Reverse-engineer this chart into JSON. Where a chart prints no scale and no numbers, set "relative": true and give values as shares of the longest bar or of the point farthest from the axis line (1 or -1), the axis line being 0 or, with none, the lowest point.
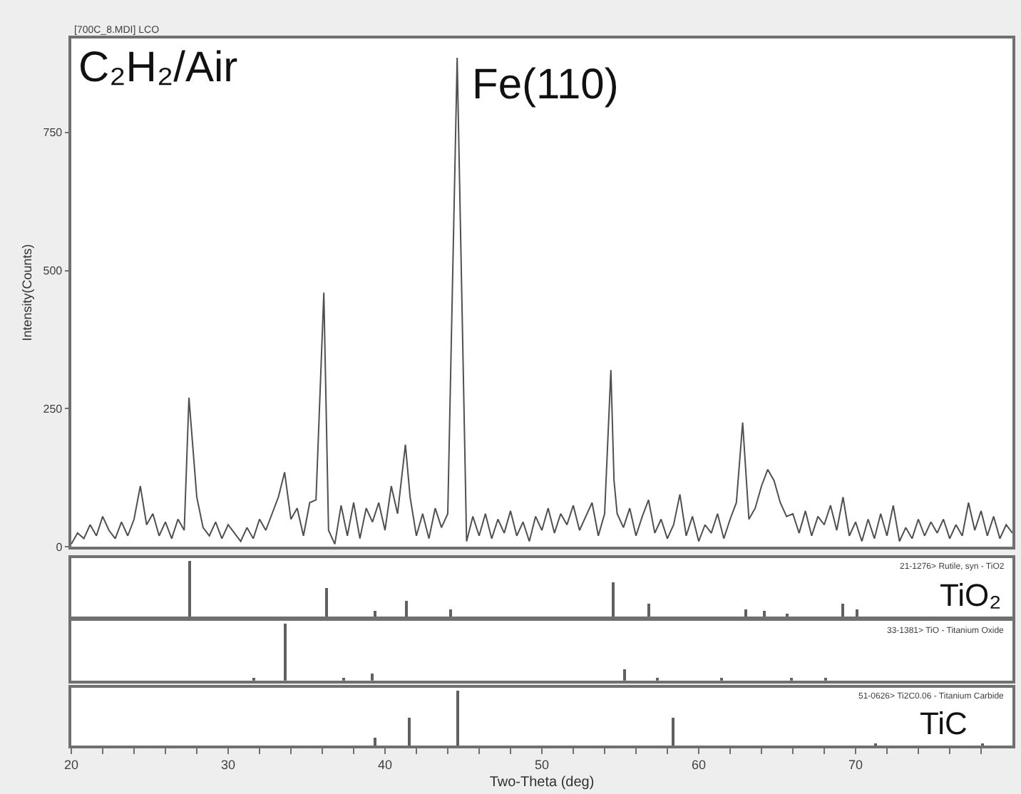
{
  "chart_data": [
    {
      "type": "line",
      "ylabel": "Intensity(Counts)",
      "xlim": [
        20,
        80
      ],
      "ylim": [
        0,
        920
      ],
      "yticks": [
        0,
        250,
        500,
        750
      ],
      "tick_labels": "y",
      "marker": "none",
      "line_style": "solid",
      "color": "#505050",
      "annotations": [
        "[700C_8.MDI] LCO",
        "C₂H₂/Air",
        {
          "text": "Fe(110)",
          "x": 44.6,
          "y": 885
        }
      ],
      "x": [
        20.0,
        20.4,
        20.8,
        21.2,
        21.6,
        22.0,
        22.4,
        22.8,
        23.2,
        23.6,
        24.0,
        24.4,
        24.8,
        25.2,
        25.6,
        26.0,
        26.4,
        26.8,
        27.2,
        27.5,
        28.0,
        28.4,
        28.8,
        29.2,
        29.6,
        30.0,
        30.4,
        30.8,
        31.2,
        31.6,
        32.0,
        32.4,
        32.8,
        33.2,
        33.6,
        34.0,
        34.4,
        34.8,
        35.2,
        35.6,
        36.1,
        36.4,
        36.8,
        37.2,
        37.6,
        38.0,
        38.4,
        38.8,
        39.2,
        39.6,
        40.0,
        40.4,
        40.8,
        41.3,
        41.6,
        42.0,
        42.4,
        42.8,
        43.2,
        43.6,
        44.0,
        44.6,
        45.2,
        45.6,
        46.0,
        46.4,
        46.8,
        47.2,
        47.6,
        48.0,
        48.4,
        48.8,
        49.2,
        49.6,
        50.0,
        50.4,
        50.8,
        51.2,
        51.6,
        52.0,
        52.4,
        52.8,
        53.2,
        53.6,
        54.0,
        54.4,
        54.6,
        54.8,
        55.2,
        55.6,
        56.0,
        56.4,
        56.8,
        57.2,
        57.6,
        58.0,
        58.4,
        58.8,
        59.2,
        59.6,
        60.0,
        60.4,
        60.8,
        61.2,
        61.6,
        62.0,
        62.4,
        62.8,
        63.2,
        63.6,
        64.0,
        64.4,
        64.8,
        65.2,
        65.6,
        66.0,
        66.4,
        66.8,
        67.2,
        67.6,
        68.0,
        68.4,
        68.8,
        69.2,
        69.6,
        70.0,
        70.4,
        70.8,
        71.2,
        71.6,
        72.0,
        72.4,
        72.8,
        73.2,
        73.6,
        74.0,
        74.4,
        74.8,
        75.2,
        75.6,
        76.0,
        76.4,
        76.8,
        77.2,
        77.6,
        78.0,
        78.4,
        78.8,
        79.2,
        79.6,
        80.0
      ],
      "values": [
        5,
        25,
        15,
        40,
        20,
        55,
        30,
        15,
        45,
        20,
        50,
        110,
        40,
        60,
        20,
        45,
        15,
        50,
        30,
        270,
        90,
        35,
        20,
        45,
        15,
        40,
        25,
        10,
        35,
        15,
        50,
        30,
        60,
        90,
        135,
        50,
        70,
        20,
        80,
        85,
        460,
        30,
        5,
        75,
        20,
        80,
        15,
        70,
        45,
        80,
        30,
        110,
        60,
        185,
        90,
        20,
        60,
        15,
        70,
        35,
        60,
        885,
        10,
        55,
        20,
        60,
        15,
        50,
        25,
        65,
        20,
        45,
        10,
        55,
        30,
        70,
        25,
        60,
        40,
        75,
        30,
        55,
        80,
        20,
        60,
        320,
        120,
        60,
        35,
        70,
        20,
        55,
        85,
        25,
        50,
        15,
        40,
        95,
        20,
        55,
        10,
        40,
        25,
        60,
        15,
        50,
        80,
        225,
        50,
        70,
        110,
        140,
        120,
        80,
        55,
        60,
        25,
        65,
        20,
        55,
        40,
        75,
        30,
        90,
        20,
        45,
        10,
        50,
        15,
        60,
        20,
        75,
        10,
        35,
        15,
        50,
        20,
        45,
        25,
        50,
        15,
        40,
        20,
        80,
        30,
        65,
        20,
        55,
        15,
        40,
        25
      ]
    },
    {
      "type": "bar",
      "relative": true,
      "xlim": [
        20,
        80
      ],
      "tick_labels": false,
      "color": "#606060",
      "annotations": [
        "21-1276> Rutile, syn - TiO2",
        "TiO₂"
      ],
      "x": [
        27.6,
        36.3,
        39.4,
        41.4,
        44.2,
        54.6,
        56.8,
        63.0,
        64.2,
        65.7,
        69.2,
        70.1
      ],
      "values": [
        1.0,
        0.5,
        0.1,
        0.28,
        0.12,
        0.62,
        0.22,
        0.12,
        0.1,
        0.05,
        0.22,
        0.12
      ]
    },
    {
      "type": "bar",
      "relative": true,
      "xlim": [
        20,
        80
      ],
      "tick_labels": false,
      "color": "#606060",
      "annotations": [
        "33-1381> TiO - Titanium Oxide"
      ],
      "x": [
        31.7,
        33.7,
        37.4,
        39.2,
        55.3,
        57.4,
        61.5,
        65.9,
        68.1
      ],
      "values": [
        0.05,
        1.0,
        0.05,
        0.12,
        0.2,
        0.03,
        0.03,
        0.05,
        0.03
      ]
    },
    {
      "type": "bar",
      "relative": true,
      "xlim": [
        20,
        80
      ],
      "tick_labels": "x",
      "color": "#606060",
      "xlabel": "Two-Theta (deg)",
      "annotations": [
        "51-0626> Ti2C0.06 - Titanium Carbide",
        "TiC"
      ],
      "xticks": [
        20,
        {
          "value": 22,
          "label": null
        },
        {
          "value": 24,
          "label": null
        },
        {
          "value": 26,
          "label": null
        },
        {
          "value": 28,
          "label": null
        },
        30,
        {
          "value": 32,
          "label": null
        },
        {
          "value": 34,
          "label": null
        },
        {
          "value": 36,
          "label": null
        },
        {
          "value": 38,
          "label": null
        },
        40,
        {
          "value": 42,
          "label": null
        },
        {
          "value": 44,
          "label": null
        },
        {
          "value": 46,
          "label": null
        },
        {
          "value": 48,
          "label": null
        },
        50,
        {
          "value": 52,
          "label": null
        },
        {
          "value": 54,
          "label": null
        },
        {
          "value": 56,
          "label": null
        },
        {
          "value": 58,
          "label": null
        },
        60,
        {
          "value": 62,
          "label": null
        },
        {
          "value": 64,
          "label": null
        },
        {
          "value": 66,
          "label": null
        },
        {
          "value": 68,
          "label": null
        },
        70,
        {
          "value": 72,
          "label": null
        },
        {
          "value": 74,
          "label": null
        },
        {
          "value": 76,
          "label": null
        },
        {
          "value": 78,
          "label": null
        }
      ],
      "x": [
        39.4,
        41.6,
        44.7,
        58.4,
        71.3,
        78.1
      ],
      "values": [
        0.15,
        0.5,
        1.0,
        0.5,
        0.03,
        0.05
      ]
    }
  ]
}
